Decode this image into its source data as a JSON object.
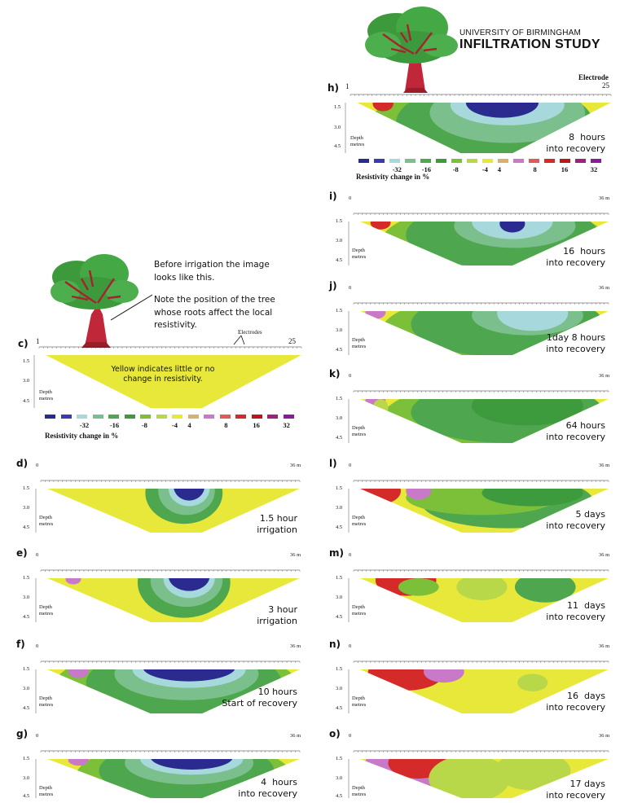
{
  "header": {
    "university": "UNIVERSITY OF BIRMINGHAM",
    "title": "INFILTRATION STUDY"
  },
  "colors": {
    "yellow": "#e8e83a",
    "legend": [
      "#2a2a8f",
      "#3b3bb0",
      "#a6d8dc",
      "#7bbf8c",
      "#4ea64e",
      "#3d9a3d",
      "#7cc03a",
      "#b8d84a",
      "#e8e83a",
      "#d9b070",
      "#c87ac8",
      "#e05a5a",
      "#d42a2a",
      "#b81818",
      "#a0207a",
      "#8a1a9a"
    ]
  },
  "legend_top": {
    "nums": [
      "-32",
      "-16",
      "-8",
      "-4",
      "4",
      "8",
      "16",
      "32"
    ],
    "label": "Resistivity change in %"
  },
  "legend_c": {
    "nums": [
      "-32",
      "-16",
      "-8",
      "-4",
      "4",
      "8",
      "16",
      "32"
    ],
    "label": "Resistivity change in %"
  },
  "panel_c": {
    "label": "c)",
    "start": "1",
    "end": "25",
    "electrodes": "Electrodes",
    "depth_label": "Depth\nmetres",
    "depths": [
      "1.5",
      "3.0",
      "4.5"
    ],
    "inner_text": "Yellow indicates little or no\nchange in resistivity.",
    "note1": "Before irrigation the image\nlooks like this.",
    "note2": "Note the position of the tree\nwhose roots affect the local\nresistivity."
  },
  "panel_h": {
    "label": "h)",
    "start": "1",
    "end": "25",
    "electrode": "Electrode",
    "depth_label": "Depth\nmetres",
    "depths": [
      "1.5",
      "3.0",
      "4.5"
    ],
    "caption": "8  hours\ninto recovery"
  },
  "panels": [
    {
      "id": "d",
      "label": "d)",
      "start": "0",
      "end": "36 m",
      "caption": "1.5 hour\nirrigation",
      "depths": [
        "1.5",
        "3.0",
        "4.5"
      ],
      "depth_label": "Depth\nmetres"
    },
    {
      "id": "e",
      "label": "e)",
      "start": "0",
      "end": "36 m",
      "caption": "3 hour\nirrigation",
      "depths": [
        "1.5",
        "3.0",
        "4.5"
      ],
      "depth_label": "Depth\nmetres"
    },
    {
      "id": "f",
      "label": "f)",
      "start": "0",
      "end": "36 m",
      "caption": "10 hours\nStart of recovery",
      "depths": [
        "1.5",
        "3.0",
        "4.5"
      ],
      "depth_label": "Depth\nmetres"
    },
    {
      "id": "g",
      "label": "g)",
      "start": "0",
      "end": "36 m",
      "caption": "4  hours\ninto recovery",
      "depths": [
        "1.5",
        "3.0",
        "4.5"
      ],
      "depth_label": "Depth\nmetres"
    },
    {
      "id": "i",
      "label": "i)",
      "start": "0",
      "end": "36 m",
      "caption": "16  hours\ninto recovery",
      "depths": [
        "1.5",
        "3.0",
        "4.5"
      ],
      "depth_label": "Depth\nmetres"
    },
    {
      "id": "j",
      "label": "j)",
      "start": "0",
      "end": "36 m",
      "caption": "1day 8 hours\ninto recovery",
      "depths": [
        "1.5",
        "3.0",
        "4.5"
      ],
      "depth_label": "Depth\nmetres"
    },
    {
      "id": "k",
      "label": "k)",
      "start": "0",
      "end": "36 m",
      "caption": "64 hours\ninto recovery",
      "depths": [
        "1.5",
        "3.0",
        "4.5"
      ],
      "depth_label": "Depth\nmetres"
    },
    {
      "id": "l",
      "label": "l)",
      "start": "0",
      "end": "36 m",
      "caption": "5 days\ninto recovery",
      "depths": [
        "1.5",
        "3.0",
        "4.5"
      ],
      "depth_label": "Depth\nmetres"
    },
    {
      "id": "m",
      "label": "m)",
      "start": "0",
      "end": "36 m",
      "caption": "11  days\ninto recovery",
      "depths": [
        "1.5",
        "3.0",
        "4.5"
      ],
      "depth_label": "Depth\nmetres"
    },
    {
      "id": "n",
      "label": "n)",
      "start": "0",
      "end": "36 m",
      "caption": "16  days\ninto recovery",
      "depths": [
        "1.5",
        "3.0",
        "4.5"
      ],
      "depth_label": "Depth\nmetres"
    },
    {
      "id": "o",
      "label": "o)",
      "start": "0",
      "end": "36 m",
      "caption": "17 days\ninto recovery",
      "depths": [
        "1.5",
        "3.0",
        "4.5"
      ],
      "depth_label": "Depth\nmetres"
    }
  ]
}
